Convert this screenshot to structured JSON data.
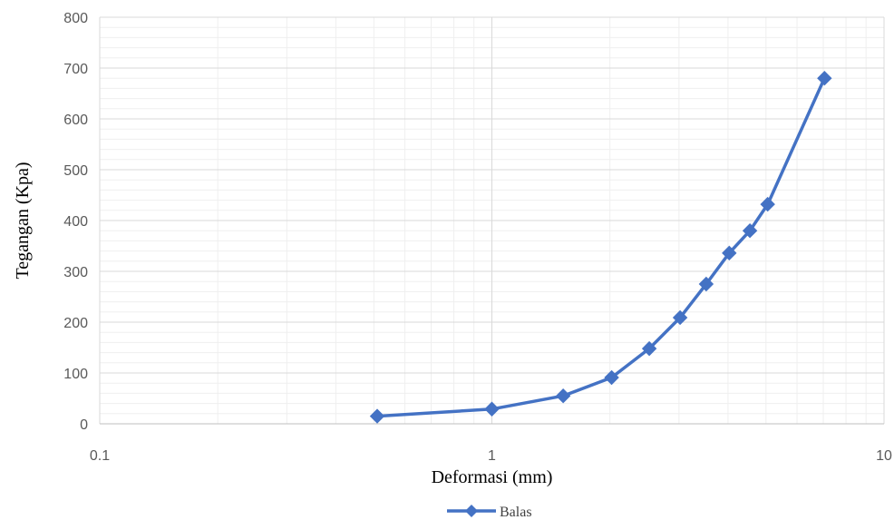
{
  "chart_data": {
    "type": "line",
    "x_scale": "log",
    "xlabel": "Deformasi (mm)",
    "ylabel": "Tegangan (Kpa)",
    "xlim": [
      0.1,
      10
    ],
    "ylim": [
      0,
      800
    ],
    "x_ticks": [
      "0.1",
      "1",
      "10"
    ],
    "y_ticks": [
      "0",
      "100",
      "200",
      "300",
      "400",
      "500",
      "600",
      "700",
      "800"
    ],
    "grid": true,
    "legend_position": "bottom",
    "series": [
      {
        "name": "Balas",
        "color": "#4472C4",
        "marker": "diamond",
        "x": [
          0.51,
          1.0,
          1.52,
          2.02,
          2.52,
          3.02,
          3.52,
          4.03,
          4.55,
          5.05,
          7.05
        ],
        "y": [
          15,
          29,
          55,
          91,
          148,
          209,
          275,
          336,
          380,
          432,
          680
        ]
      }
    ]
  }
}
